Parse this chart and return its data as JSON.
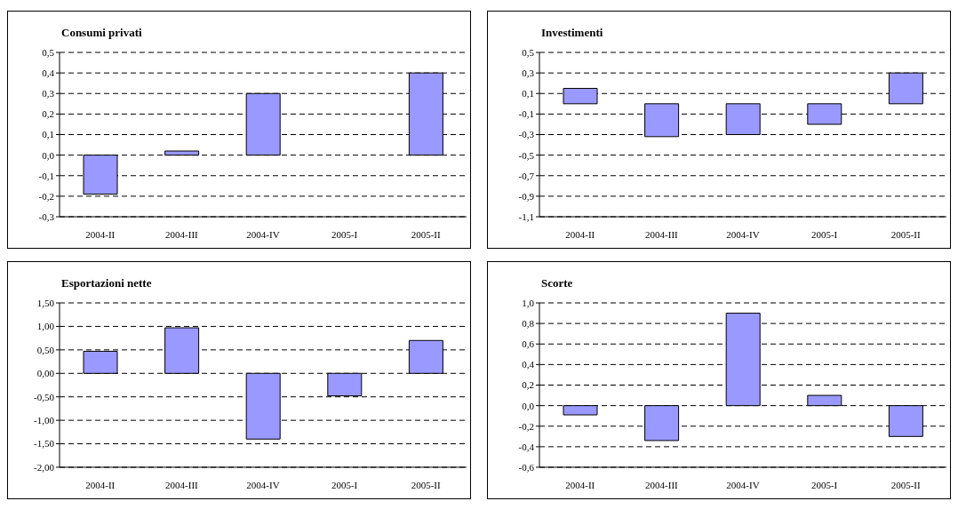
{
  "chart_data": [
    {
      "type": "bar",
      "title": "Consumi privati",
      "categories": [
        "2004-II",
        "2004-III",
        "2004-IV",
        "2005-I",
        "2005-II"
      ],
      "values": [
        -0.19,
        0.02,
        0.3,
        0,
        0.4
      ],
      "color": "#9999ff",
      "ylim": [
        -0.3,
        0.5
      ],
      "yticks": [
        {
          "value": -0.3,
          "label": "-0,3"
        },
        {
          "value": -0.2,
          "label": "-0,2"
        },
        {
          "value": -0.1,
          "label": "-0,1"
        },
        {
          "value": 0,
          "label": "0,0"
        },
        {
          "value": 0.1,
          "label": "0,1"
        },
        {
          "value": 0.2,
          "label": "0,2"
        },
        {
          "value": 0.3,
          "label": "0,3"
        },
        {
          "value": 0.4,
          "label": "0,4"
        },
        {
          "value": 0.5,
          "label": "0,5"
        }
      ],
      "grid": "y",
      "legend": false
    },
    {
      "type": "bar",
      "title": "Investimenti",
      "categories": [
        "2004-II",
        "2004-III",
        "2004-IV",
        "2005-I",
        "2005-II"
      ],
      "values": [
        0.15,
        -0.32,
        -0.3,
        -0.2,
        0.3
      ],
      "color": "#9999ff",
      "ylim": [
        -1.1,
        0.5
      ],
      "yticks": [
        {
          "value": -1.1,
          "label": "-1,1"
        },
        {
          "value": -0.9,
          "label": "-0,9"
        },
        {
          "value": -0.7,
          "label": "-0,7"
        },
        {
          "value": -0.5,
          "label": "-0,5"
        },
        {
          "value": -0.3,
          "label": "-0,3"
        },
        {
          "value": -0.1,
          "label": "-0,1"
        },
        {
          "value": 0.1,
          "label": "0,1"
        },
        {
          "value": 0.3,
          "label": "0,3"
        },
        {
          "value": 0.5,
          "label": "0,5"
        }
      ],
      "grid": "y",
      "legend": false
    },
    {
      "type": "bar",
      "title": "Esportazioni nette",
      "categories": [
        "2004-II",
        "2004-III",
        "2004-IV",
        "2005-I",
        "2005-II"
      ],
      "values": [
        0.47,
        0.97,
        -1.4,
        -0.48,
        0.7
      ],
      "color": "#9999ff",
      "ylim": [
        -2,
        1.5
      ],
      "yticks": [
        {
          "value": -2,
          "label": "-2,00"
        },
        {
          "value": -1.5,
          "label": "-1,50"
        },
        {
          "value": -1,
          "label": "-1,00"
        },
        {
          "value": -0.5,
          "label": "-0,50"
        },
        {
          "value": 0,
          "label": "0,00"
        },
        {
          "value": 0.5,
          "label": "0,50"
        },
        {
          "value": 1,
          "label": "1,00"
        },
        {
          "value": 1.5,
          "label": "1,50"
        }
      ],
      "grid": "y",
      "legend": false
    },
    {
      "type": "bar",
      "title": "Scorte",
      "categories": [
        "2004-II",
        "2004-III",
        "2004-IV",
        "2005-I",
        "2005-II"
      ],
      "values": [
        -0.09,
        -0.34,
        0.9,
        0.1,
        -0.3
      ],
      "color": "#9999ff",
      "ylim": [
        -0.6,
        1
      ],
      "yticks": [
        {
          "value": -0.6,
          "label": "-0,6"
        },
        {
          "value": -0.4,
          "label": "-0,4"
        },
        {
          "value": -0.2,
          "label": "-0,2"
        },
        {
          "value": 0,
          "label": "0,0"
        },
        {
          "value": 0.2,
          "label": "0,2"
        },
        {
          "value": 0.4,
          "label": "0,4"
        },
        {
          "value": 0.6,
          "label": "0,6"
        },
        {
          "value": 0.8,
          "label": "0,8"
        },
        {
          "value": 1,
          "label": "1,0"
        }
      ],
      "grid": "y",
      "legend": false
    }
  ]
}
